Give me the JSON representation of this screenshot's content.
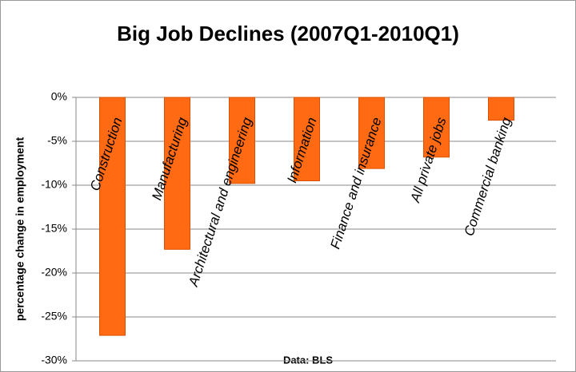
{
  "chart_data": {
    "type": "bar",
    "title": "Big Job Declines (2007Q1-2010Q1)",
    "y_label": "percentage change in employment",
    "x_label": "Data: BLS",
    "categories": [
      "Construction",
      "Manufacturing",
      "Architectural and engineering",
      "Information",
      "Finance and insurance",
      "All private jobs",
      "Commercial banking"
    ],
    "values": [
      -27.1,
      -17.3,
      -9.8,
      -9.5,
      -8.1,
      -6.8,
      -2.6
    ],
    "color": "#ff6a13",
    "ylim": [
      -30,
      0
    ],
    "yticks": [
      {
        "value": 0,
        "label": "0%"
      },
      {
        "value": -5,
        "label": "-5%"
      },
      {
        "value": -10,
        "label": "-10%"
      },
      {
        "value": -15,
        "label": "-15%"
      },
      {
        "value": -20,
        "label": "-20%"
      },
      {
        "value": -25,
        "label": "-25%"
      },
      {
        "value": -30,
        "label": "-30%"
      }
    ],
    "grid": true
  }
}
